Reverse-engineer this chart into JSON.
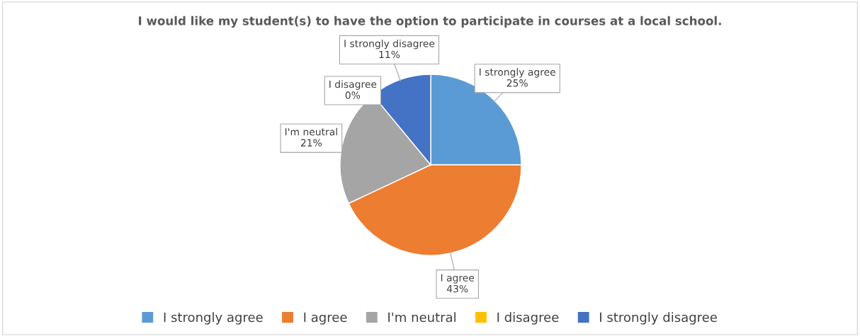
{
  "chart_data": {
    "type": "pie",
    "title": "I would like my student(s) to have the option to participate in courses at a local school.",
    "categories": [
      "I strongly agree",
      "I agree",
      "I'm neutral",
      "I disagree",
      "I strongly disagree"
    ],
    "values": [
      25,
      43,
      21,
      0,
      11
    ],
    "value_labels": [
      "25%",
      "43%",
      "21%",
      "0%",
      "11%"
    ],
    "colors": [
      "#5b9bd5",
      "#ed7d31",
      "#a5a5a5",
      "#ffc000",
      "#4472c4"
    ],
    "legend": "bottom"
  }
}
